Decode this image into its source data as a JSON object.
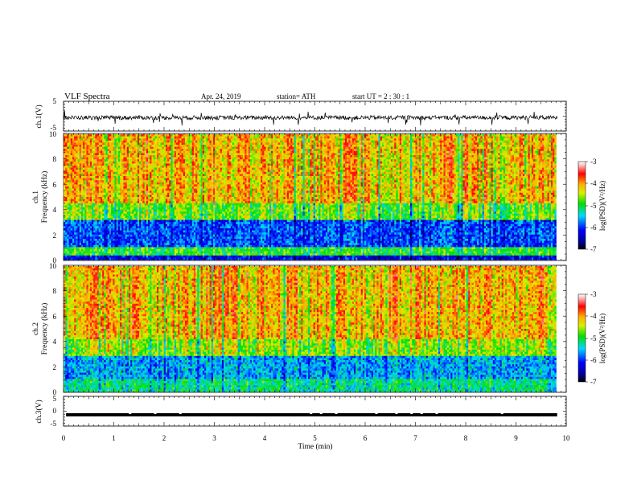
{
  "header": {
    "title": "VLF  Spectra",
    "date": "Apr. 24, 2019",
    "station": "station= ATH",
    "start": "start  UT  =   2  : 30 : 1"
  },
  "chart_data": [
    {
      "type": "line",
      "panel": "ch1-waveform",
      "ylabel": "ch.1(V)",
      "xlim": [
        0,
        10
      ],
      "ylim": [
        -5,
        5
      ],
      "y_ticks": [
        "5",
        "-5"
      ],
      "description_values": {
        "baseline": -0.5,
        "typical_range": [
          -1.6,
          0.6
        ],
        "spike_range": [
          -3.2,
          1.8
        ]
      }
    },
    {
      "type": "heatmap",
      "panel": "ch1-spectrogram",
      "ylabel_top": "ch.1",
      "ylabel": "Frequency  (kHz)",
      "xlim": [
        0,
        9.8
      ],
      "ylim": [
        0,
        10
      ],
      "y_ticks": [
        "0",
        "2",
        "4",
        "6",
        "8",
        "10"
      ],
      "band_logpsd": [
        {
          "f_khz": [
            0,
            0.4
          ],
          "logpsd": -6.2
        },
        {
          "f_khz": [
            0.4,
            1.0
          ],
          "logpsd": -4.9
        },
        {
          "f_khz": [
            1.0,
            3.2
          ],
          "logpsd": -5.9
        },
        {
          "f_khz": [
            3.2,
            4.5
          ],
          "logpsd": -4.7
        },
        {
          "f_khz": [
            4.5,
            10
          ],
          "logpsd": -4.1
        }
      ]
    },
    {
      "type": "heatmap",
      "panel": "ch2-spectrogram",
      "ylabel_top": "ch.2",
      "ylabel": "Frequency  (kHz)",
      "xlim": [
        0,
        9.8
      ],
      "ylim": [
        0,
        10
      ],
      "y_ticks": [
        "0",
        "2",
        "4",
        "6",
        "8",
        "10"
      ],
      "band_logpsd": [
        {
          "f_khz": [
            0,
            1.0
          ],
          "logpsd": -5.2
        },
        {
          "f_khz": [
            1.0,
            2.8
          ],
          "logpsd": -5.6
        },
        {
          "f_khz": [
            2.8,
            4.2
          ],
          "logpsd": -4.6
        },
        {
          "f_khz": [
            4.2,
            10
          ],
          "logpsd": -4.1
        }
      ]
    },
    {
      "type": "line",
      "panel": "ch3-waveform",
      "ylabel": "ch.3(V)",
      "xlim": [
        0,
        10
      ],
      "ylim": [
        -5,
        5
      ],
      "y_ticks": [
        "5",
        "0",
        "-5"
      ],
      "level": -1.2,
      "gaps_min": [
        1.3,
        1.8,
        2.3,
        4.9,
        5.1,
        5.4,
        6.2,
        6.6,
        6.9,
        7.1,
        7.4,
        8.7
      ]
    }
  ],
  "colorbars": [
    {
      "label": "log(PSD)(V²/Hz)",
      "ticks": [
        "-3",
        "-4",
        "-5",
        "-6",
        "-7"
      ],
      "range": [
        -7,
        -3
      ]
    },
    {
      "label": "log(PSD)(V²/Hz)",
      "ticks": [
        "-3",
        "-4",
        "-5",
        "-6",
        "-7"
      ],
      "range": [
        -7,
        -3
      ]
    }
  ],
  "time_axis": {
    "label": "Time  (min)",
    "ticks": [
      "0",
      "1",
      "2",
      "3",
      "4",
      "5",
      "6",
      "7",
      "8",
      "9",
      "10"
    ],
    "range": [
      0,
      10
    ]
  }
}
